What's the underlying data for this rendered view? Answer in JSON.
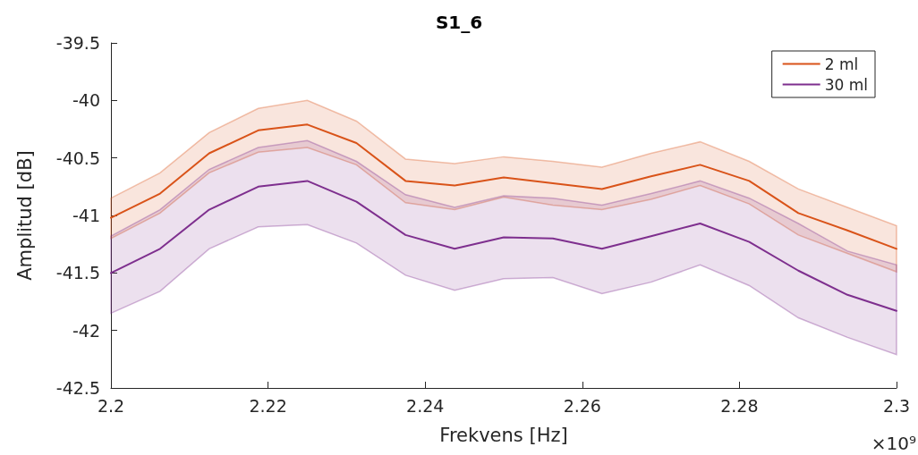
{
  "chart_data": {
    "type": "line",
    "title": "S1_6",
    "xlabel": "Frekvens [Hz]",
    "ylabel": "Amplitud [dB]",
    "annotations": [
      "×10⁹"
    ],
    "x": [
      2.2,
      2.20625,
      2.2125,
      2.21875,
      2.225,
      2.23125,
      2.2375,
      2.24375,
      2.25,
      2.25625,
      2.2625,
      2.26875,
      2.275,
      2.28125,
      2.2875,
      2.29375,
      2.3
    ],
    "series": [
      {
        "name": "2 ml",
        "color": "#d95319",
        "values": [
          -41.02,
          -40.81,
          -40.46,
          -40.26,
          -40.21,
          -40.37,
          -40.7,
          -40.74,
          -40.67,
          -40.72,
          -40.77,
          -40.66,
          -40.56,
          -40.7,
          -40.98,
          -41.13,
          -41.29
        ],
        "upper": [
          -40.85,
          -40.63,
          -40.28,
          -40.07,
          -40.0,
          -40.18,
          -40.51,
          -40.55,
          -40.49,
          -40.53,
          -40.58,
          -40.46,
          -40.36,
          -40.53,
          -40.77,
          -40.93,
          -41.09
        ],
        "lower": [
          -41.2,
          -40.98,
          -40.63,
          -40.45,
          -40.41,
          -40.56,
          -40.89,
          -40.95,
          -40.84,
          -40.91,
          -40.95,
          -40.86,
          -40.74,
          -40.9,
          -41.17,
          -41.33,
          -41.49
        ]
      },
      {
        "name": "30 ml",
        "color": "#7e2f8e",
        "values": [
          -41.5,
          -41.29,
          -40.95,
          -40.75,
          -40.7,
          -40.88,
          -41.17,
          -41.29,
          -41.19,
          -41.2,
          -41.29,
          -41.18,
          -41.07,
          -41.23,
          -41.48,
          -41.69,
          -41.83
        ],
        "upper": [
          -41.18,
          -40.95,
          -40.6,
          -40.41,
          -40.35,
          -40.53,
          -40.82,
          -40.93,
          -40.83,
          -40.85,
          -40.91,
          -40.81,
          -40.7,
          -40.85,
          -41.07,
          -41.31,
          -41.43
        ],
        "lower": [
          -41.85,
          -41.66,
          -41.29,
          -41.1,
          -41.08,
          -41.24,
          -41.52,
          -41.65,
          -41.55,
          -41.54,
          -41.68,
          -41.58,
          -41.43,
          -41.61,
          -41.89,
          -42.06,
          -42.21
        ]
      }
    ],
    "xlim": [
      2.2,
      2.3
    ],
    "xticks": [
      2.2,
      2.22,
      2.24,
      2.26,
      2.28,
      2.3
    ],
    "ylim": [
      -42.5,
      -39.5
    ],
    "yticks": [
      -42.5,
      -42,
      -41.5,
      -41,
      -40.5,
      -40,
      -39.5
    ],
    "legend": "top right",
    "grid": false,
    "marker": "none",
    "line_style": "solid"
  }
}
